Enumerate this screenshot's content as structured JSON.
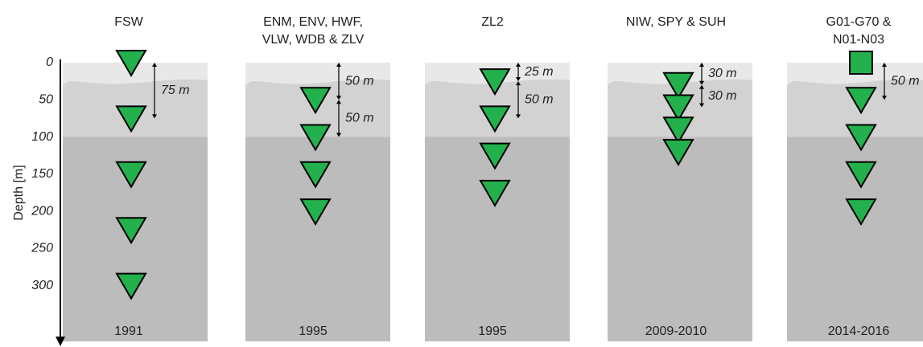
{
  "axis": {
    "label": "Depth [m]",
    "ticks": [
      0,
      50,
      100,
      150,
      200,
      250,
      300
    ],
    "lim": [
      0,
      375
    ]
  },
  "panels": [
    {
      "title": [
        "FSW"
      ],
      "year": "1991",
      "sensors": [
        {
          "shape": "triangle",
          "depth": 0
        },
        {
          "shape": "triangle",
          "depth": 75
        },
        {
          "shape": "triangle",
          "depth": 150
        },
        {
          "shape": "triangle",
          "depth": 225
        },
        {
          "shape": "triangle",
          "depth": 300
        }
      ],
      "spacings": [
        {
          "label": "75 m",
          "from": 0,
          "to": 75
        }
      ]
    },
    {
      "title": [
        "ENM, ENV, HWF,",
        "VLW, WDB & ZLV"
      ],
      "year": "1995",
      "sensors": [
        {
          "shape": "triangle",
          "depth": 50
        },
        {
          "shape": "triangle",
          "depth": 100
        },
        {
          "shape": "triangle",
          "depth": 150
        },
        {
          "shape": "triangle",
          "depth": 200
        }
      ],
      "spacings": [
        {
          "label": "50 m",
          "from": 0,
          "to": 50
        },
        {
          "label": "50 m",
          "from": 50,
          "to": 100
        }
      ]
    },
    {
      "title": [
        "ZL2"
      ],
      "year": "1995",
      "sensors": [
        {
          "shape": "triangle",
          "depth": 25
        },
        {
          "shape": "triangle",
          "depth": 75
        },
        {
          "shape": "triangle",
          "depth": 125
        },
        {
          "shape": "triangle",
          "depth": 175
        }
      ],
      "spacings": [
        {
          "label": "25 m",
          "from": 0,
          "to": 25
        },
        {
          "label": "50 m",
          "from": 25,
          "to": 75
        }
      ]
    },
    {
      "title": [
        "NIW, SPY & SUH"
      ],
      "year": "2009-2010",
      "sensors": [
        {
          "shape": "triangle",
          "depth": 30
        },
        {
          "shape": "triangle",
          "depth": 60
        },
        {
          "shape": "triangle",
          "depth": 90
        },
        {
          "shape": "triangle",
          "depth": 120
        }
      ],
      "spacings": [
        {
          "label": "30 m",
          "from": 0,
          "to": 30
        },
        {
          "label": "30 m",
          "from": 30,
          "to": 60
        }
      ]
    },
    {
      "title": [
        "G01-G70 &",
        "N01-N03"
      ],
      "year": "2014-2016",
      "sensors": [
        {
          "shape": "square",
          "depth": 0
        },
        {
          "shape": "triangle",
          "depth": 50
        },
        {
          "shape": "triangle",
          "depth": 100
        },
        {
          "shape": "triangle",
          "depth": 150
        },
        {
          "shape": "triangle",
          "depth": 200
        }
      ],
      "spacings": [
        {
          "label": "50 m",
          "from": 0,
          "to": 50
        }
      ]
    }
  ]
}
